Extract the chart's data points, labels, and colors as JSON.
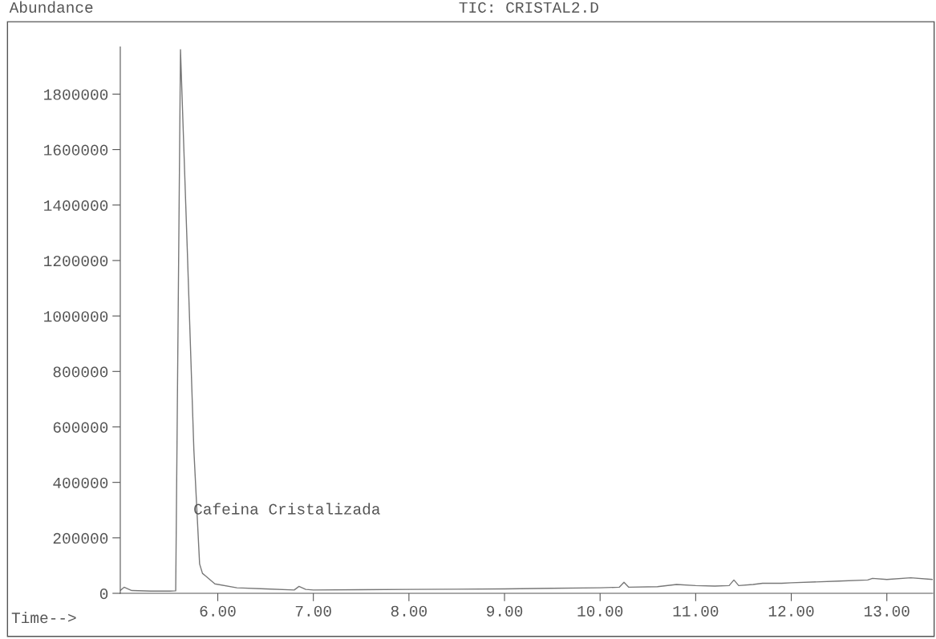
{
  "chart_data": {
    "type": "line",
    "title": "TIC: CRISTAL2.D",
    "ylabel": "Abundance",
    "xlabel": "Time-->",
    "x": [
      4.98,
      5.02,
      5.1,
      5.3,
      5.5,
      5.56,
      5.61,
      5.68,
      5.75,
      5.81,
      5.84,
      5.97,
      6.2,
      6.5,
      6.8,
      6.85,
      6.92,
      7.0,
      7.5,
      8.0,
      8.5,
      9.0,
      9.5,
      10.0,
      10.2,
      10.25,
      10.3,
      10.6,
      10.8,
      11.0,
      11.2,
      11.35,
      11.4,
      11.45,
      11.6,
      11.7,
      11.9,
      12.0,
      12.5,
      12.8,
      12.85,
      13.0,
      13.25,
      13.48
    ],
    "values": [
      10000,
      22000,
      10000,
      8000,
      8000,
      9000,
      1960000,
      1250000,
      516000,
      106000,
      72000,
      34000,
      20000,
      16000,
      12000,
      25000,
      14000,
      12000,
      13000,
      14000,
      15000,
      16000,
      18000,
      20000,
      22000,
      40000,
      22000,
      24000,
      32000,
      28000,
      26000,
      28000,
      48000,
      28000,
      32000,
      36000,
      36000,
      38000,
      44000,
      48000,
      54000,
      50000,
      56000,
      50000
    ],
    "color": "#777777",
    "xlim": [
      4.98,
      13.48
    ],
    "ylim": [
      0,
      1970000
    ],
    "xticks": [
      {
        "value": 6,
        "label": "6.00"
      },
      {
        "value": 7,
        "label": "7.00"
      },
      {
        "value": 8,
        "label": "8.00"
      },
      {
        "value": 9,
        "label": "9.00"
      },
      {
        "value": 10,
        "label": "10.00"
      },
      {
        "value": 11,
        "label": "11.00"
      },
      {
        "value": 12,
        "label": "12.00"
      },
      {
        "value": 13,
        "label": "13.00"
      }
    ],
    "yticks": [
      0,
      200000,
      400000,
      600000,
      800000,
      1000000,
      1200000,
      1400000,
      1600000,
      1800000
    ],
    "annotations": [
      "Cafeina Cristalizada"
    ],
    "grid": false,
    "legend": false
  }
}
